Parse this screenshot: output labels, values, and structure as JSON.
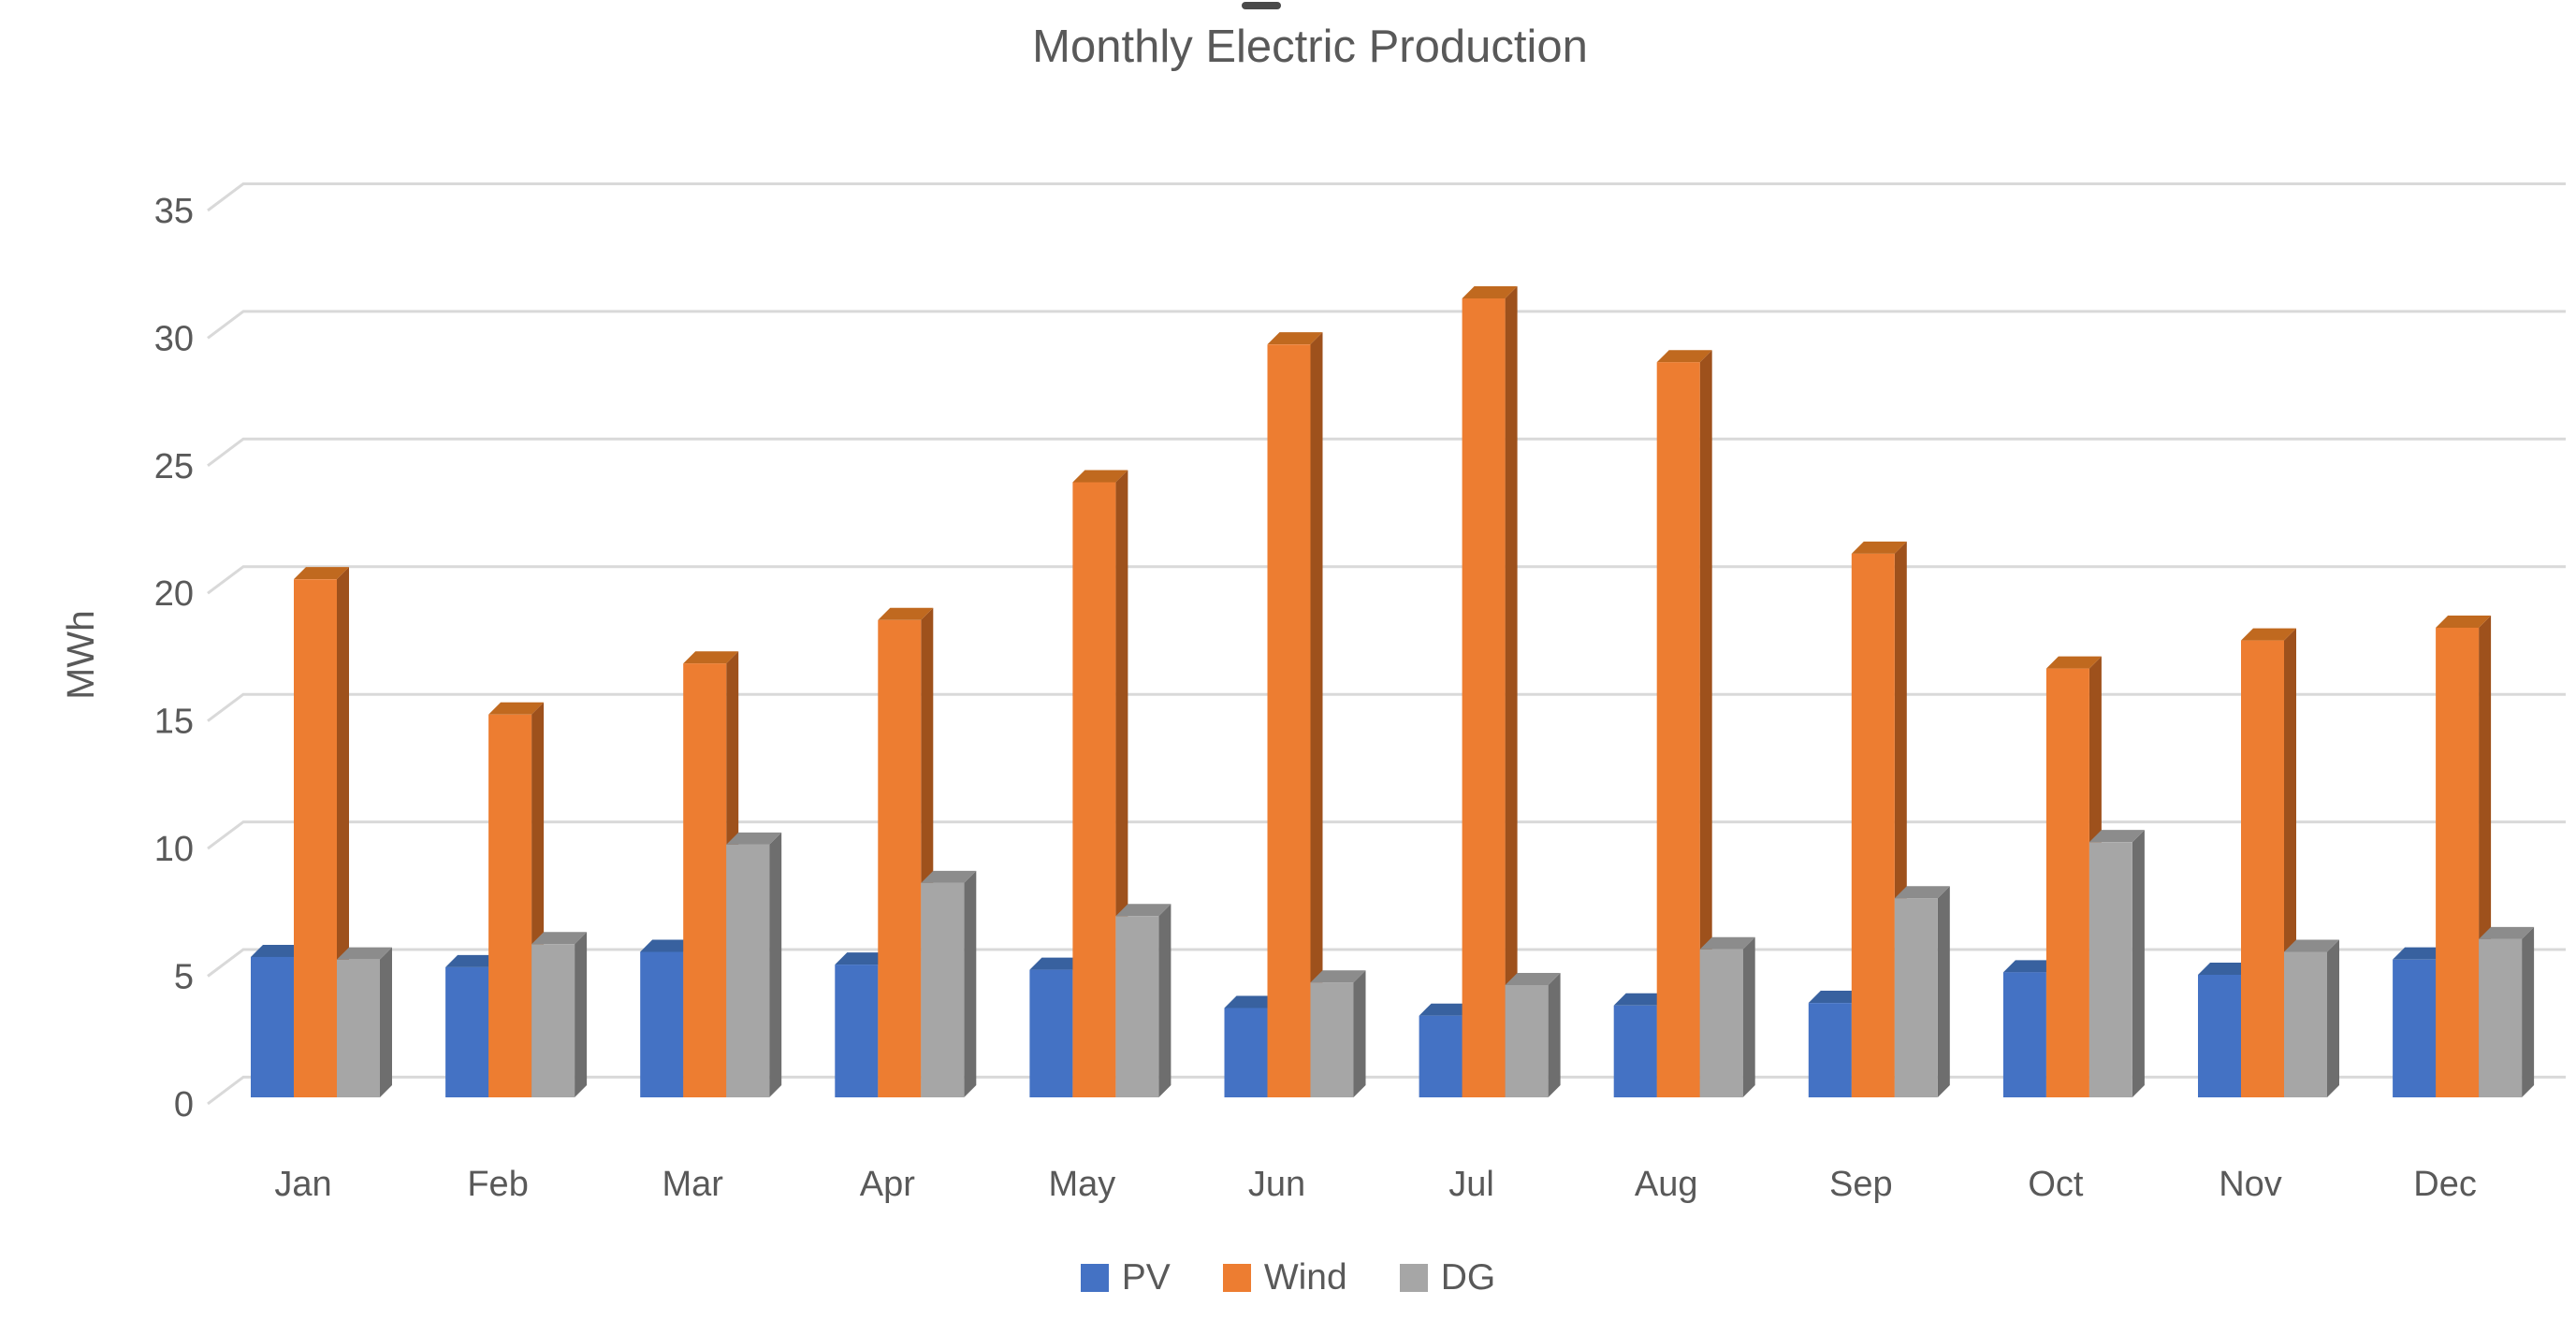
{
  "artifact": {
    "note": "small cropped dark dash at top center of screenshot"
  },
  "chart_data": {
    "type": "bar",
    "style": "3d-clustered-column",
    "title": "Monthly Electric Production",
    "xlabel": "",
    "ylabel": "MWh",
    "ylim": [
      0,
      35
    ],
    "ytick_step": 5,
    "yticks": [
      0,
      5,
      10,
      15,
      20,
      25,
      30,
      35
    ],
    "grid": true,
    "legend_position": "bottom",
    "categories": [
      "Jan",
      "Feb",
      "Mar",
      "Apr",
      "May",
      "Jun",
      "Jul",
      "Aug",
      "Sep",
      "Oct",
      "Nov",
      "Dec"
    ],
    "series": [
      {
        "name": "PV",
        "color": "#4472C4",
        "values": [
          5.5,
          5.1,
          5.7,
          5.2,
          5.0,
          3.5,
          3.2,
          3.6,
          3.7,
          4.9,
          4.8,
          5.4
        ]
      },
      {
        "name": "Wind",
        "color": "#ED7D31",
        "values": [
          20.3,
          15.0,
          17.0,
          18.7,
          24.1,
          29.5,
          31.3,
          28.8,
          21.3,
          16.8,
          17.9,
          18.4
        ]
      },
      {
        "name": "DG",
        "color": "#A6A6A6",
        "values": [
          5.4,
          6.0,
          9.9,
          8.4,
          7.1,
          4.5,
          4.4,
          5.8,
          7.8,
          10.0,
          5.7,
          6.2
        ]
      }
    ]
  },
  "colors": {
    "title_text": "#595959",
    "axis_text": "#595959",
    "gridline": "#D9D9D9",
    "bar_faces": {
      "PV": {
        "front": "#4472C4",
        "side": "#2D4D80",
        "top": "#38619F"
      },
      "Wind": {
        "front": "#ED7D31",
        "side": "#9E511C",
        "top": "#C0691F"
      },
      "DG": {
        "front": "#A6A6A6",
        "side": "#6E6E6E",
        "top": "#8C8C8C"
      }
    }
  }
}
